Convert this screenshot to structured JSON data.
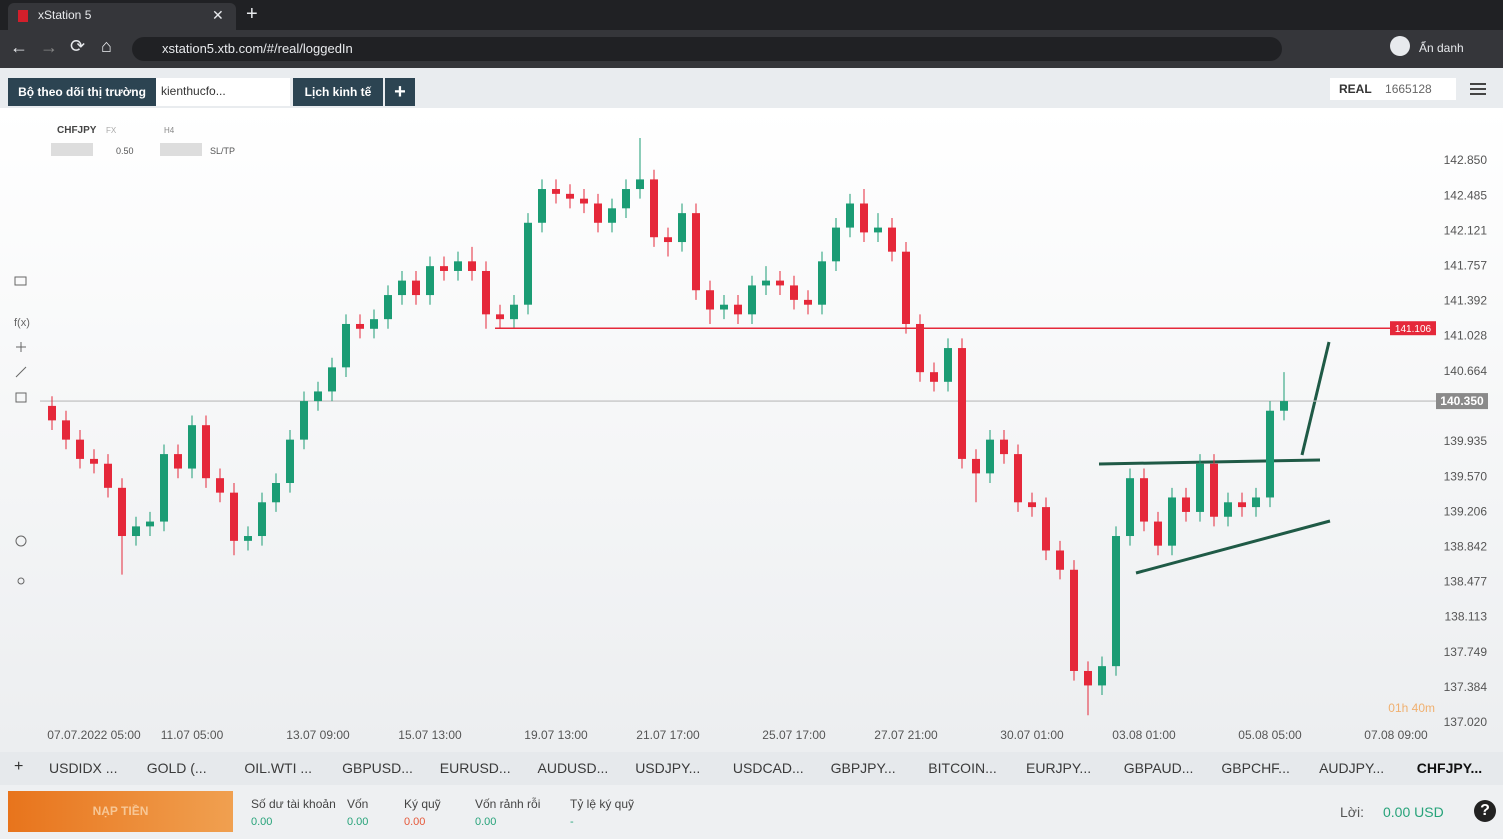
{
  "browser": {
    "tab_title": "xStation 5",
    "url": "xstation5.xtb.com/#/real/loggedIn",
    "profile": "Ẩn danh"
  },
  "toolbar": {
    "tabs": [
      "Bộ theo dõi thị trường",
      "kienthucfo...",
      "Lịch kinh tế"
    ],
    "account_type": "REAL",
    "account_number": "1665128"
  },
  "chart_header": {
    "symbol": "CHFJPY",
    "market": "FX",
    "interval": "H4",
    "volume": "0.50",
    "sl_tp": "SL/TP"
  },
  "chart_data": {
    "type": "candlestick",
    "up_color": "#1b9c74",
    "down_color": "#e5283a",
    "categories": [
      null,
      null,
      null,
      "07.07.2022 05:00",
      null,
      null,
      null,
      null,
      null,
      null,
      "11.07 05:00",
      null,
      null,
      null,
      null,
      null,
      null,
      null,
      null,
      "13.07 09:00",
      null,
      null,
      null,
      null,
      null,
      null,
      null,
      "15.07 13:00",
      null,
      null,
      null,
      null,
      null,
      null,
      null,
      null,
      "19.07 13:00",
      null,
      null,
      null,
      null,
      null,
      null,
      null,
      "21.07 17:00",
      null,
      null,
      null,
      null,
      null,
      null,
      null,
      null,
      "25.07 17:00",
      null,
      null,
      null,
      null,
      null,
      null,
      null,
      "27.07 21:00",
      null,
      null,
      null,
      null,
      null,
      null,
      null,
      null,
      "30.07 01:00",
      null,
      null,
      null,
      null,
      null,
      null,
      null,
      "03.08 01:00",
      null,
      null,
      null,
      null,
      null,
      null,
      null,
      null,
      "05.08 05:00",
      null,
      null,
      null,
      null,
      null,
      null,
      null,
      null,
      "07.08 09:00"
    ],
    "open": [
      140.3,
      140.15,
      139.95,
      139.75,
      139.7,
      139.45,
      138.95,
      139.05,
      139.1,
      139.8,
      139.65,
      140.1,
      139.55,
      139.4,
      138.9,
      138.95,
      139.3,
      139.5,
      139.95,
      140.35,
      140.45,
      140.7,
      141.15,
      141.1,
      141.2,
      141.45,
      141.6,
      141.45,
      141.75,
      141.7,
      141.8,
      141.7,
      141.25,
      141.2,
      141.35,
      142.2,
      142.55,
      142.5,
      142.45,
      142.4,
      142.2,
      142.35,
      142.55,
      142.65,
      142.05,
      142.0,
      142.3,
      141.5,
      141.3,
      141.35,
      141.25,
      141.55,
      141.6,
      141.55,
      141.4,
      141.35,
      141.8,
      142.15,
      142.4,
      142.1,
      142.15,
      141.9,
      141.15,
      140.65,
      140.55,
      140.9,
      139.75,
      139.6,
      139.95,
      139.8,
      139.3,
      139.25,
      138.8,
      138.6,
      137.55,
      137.4,
      137.6,
      138.95,
      139.55,
      139.1,
      138.85,
      139.35,
      139.2,
      139.7,
      139.15,
      139.3,
      139.25,
      139.35,
      140.25,
      null,
      null,
      null,
      null,
      null,
      null,
      null,
      null
    ],
    "high": [
      140.4,
      140.25,
      140.05,
      139.85,
      139.8,
      139.55,
      139.15,
      139.2,
      139.9,
      139.9,
      140.2,
      140.2,
      139.65,
      139.5,
      139.05,
      139.4,
      139.6,
      140.05,
      140.45,
      140.55,
      140.8,
      141.25,
      141.25,
      141.3,
      141.55,
      141.7,
      141.7,
      141.85,
      141.85,
      141.9,
      141.95,
      141.8,
      141.35,
      141.45,
      142.3,
      142.65,
      142.65,
      142.6,
      142.55,
      142.5,
      142.45,
      142.65,
      143.08,
      142.75,
      142.15,
      142.4,
      142.4,
      141.6,
      141.45,
      141.45,
      141.65,
      141.75,
      141.7,
      141.65,
      141.5,
      141.9,
      142.25,
      142.5,
      142.55,
      142.3,
      142.25,
      142.0,
      141.25,
      140.75,
      141.0,
      141.0,
      139.85,
      140.05,
      140.05,
      139.9,
      139.4,
      139.35,
      138.9,
      138.7,
      137.65,
      137.7,
      139.05,
      139.65,
      139.65,
      139.2,
      139.45,
      139.45,
      139.8,
      139.8,
      139.4,
      139.4,
      139.45,
      140.35,
      140.65,
      null,
      null,
      null,
      null,
      null,
      null,
      null,
      null
    ],
    "low": [
      140.05,
      139.85,
      139.65,
      139.6,
      139.35,
      138.55,
      138.85,
      138.95,
      139.0,
      139.55,
      139.55,
      139.45,
      139.3,
      138.75,
      138.8,
      138.85,
      139.2,
      139.4,
      139.85,
      140.25,
      140.35,
      140.6,
      141.0,
      141.0,
      141.1,
      141.35,
      141.35,
      141.35,
      141.6,
      141.6,
      141.6,
      141.1,
      141.1,
      141.1,
      141.25,
      142.1,
      142.4,
      142.35,
      142.3,
      142.1,
      142.1,
      142.25,
      142.45,
      141.95,
      141.85,
      141.9,
      141.4,
      141.15,
      141.2,
      141.15,
      141.15,
      141.45,
      141.45,
      141.3,
      141.25,
      141.25,
      141.7,
      142.05,
      142.0,
      142.0,
      141.8,
      141.05,
      140.55,
      140.45,
      140.45,
      139.65,
      139.3,
      139.5,
      139.7,
      139.2,
      139.15,
      138.7,
      138.5,
      137.45,
      137.09,
      137.3,
      137.5,
      138.85,
      139.0,
      138.75,
      138.75,
      139.1,
      139.1,
      139.05,
      139.05,
      139.15,
      139.15,
      139.25,
      140.15,
      null,
      null,
      null,
      null,
      null,
      null,
      null,
      null
    ],
    "close": [
      140.15,
      139.95,
      139.75,
      139.7,
      139.45,
      138.95,
      139.05,
      139.1,
      139.8,
      139.65,
      140.1,
      139.55,
      139.4,
      138.9,
      138.95,
      139.3,
      139.5,
      139.95,
      140.35,
      140.45,
      140.7,
      141.15,
      141.1,
      141.2,
      141.45,
      141.6,
      141.45,
      141.75,
      141.7,
      141.8,
      141.7,
      141.25,
      141.2,
      141.35,
      142.2,
      142.55,
      142.5,
      142.45,
      142.4,
      142.2,
      142.35,
      142.55,
      142.65,
      142.05,
      142.0,
      142.3,
      141.5,
      141.3,
      141.35,
      141.25,
      141.55,
      141.6,
      141.55,
      141.4,
      141.35,
      141.8,
      142.15,
      142.4,
      142.1,
      142.15,
      141.9,
      141.15,
      140.65,
      140.55,
      140.9,
      139.75,
      139.6,
      139.95,
      139.8,
      139.3,
      139.25,
      138.8,
      138.6,
      137.55,
      137.4,
      137.6,
      138.95,
      139.55,
      139.1,
      138.85,
      139.35,
      139.2,
      139.7,
      139.15,
      139.3,
      139.25,
      139.35,
      140.25,
      140.35,
      null,
      null,
      null,
      null,
      null,
      null,
      null,
      null
    ],
    "ylim": [
      136.73,
      143.37
    ],
    "yticks": [
      {
        "value": 142.85,
        "label": "142.850"
      },
      142.485,
      142.121,
      141.757,
      141.392,
      141.028,
      140.664,
      139.935,
      {
        "value": 139.57,
        "label": "139.570"
      },
      139.206,
      138.842,
      138.477,
      138.113,
      137.749,
      137.384,
      {
        "value": 137.02,
        "label": "137.020"
      }
    ],
    "grid": false,
    "level_line": {
      "value": 141.106,
      "label": "141.106",
      "color": "#e5283a"
    },
    "price_line": {
      "value": 140.35,
      "label": "140.350",
      "color": "#bbbbbb"
    },
    "timer": "01h 40m"
  },
  "instrument_tabs": [
    "USDIDX ...",
    "GOLD (...",
    "OIL.WTI ...",
    "GBPUSD...",
    "EURUSD...",
    "AUDUSD...",
    "USDJPY...",
    "USDCAD...",
    "GBPJPY...",
    "BITCOIN...",
    "EURJPY...",
    "GBPAUD...",
    "GBPCHF...",
    "AUDJPY...",
    "CHFJPY..."
  ],
  "footer": {
    "deposit": "NẠP TIỀN",
    "account": [
      {
        "label": "Số dư tài khoản",
        "value": "0.00"
      },
      {
        "label": "Vốn",
        "value": "0.00"
      },
      {
        "label": "Ký quỹ",
        "value": "0.00"
      },
      {
        "label": "Vốn rảnh rỗi",
        "value": "0.00"
      },
      {
        "label": "Tỷ lệ ký quỹ",
        "value": "-"
      }
    ],
    "profit_label": "Lời:",
    "profit_value": "0.00 USD"
  }
}
